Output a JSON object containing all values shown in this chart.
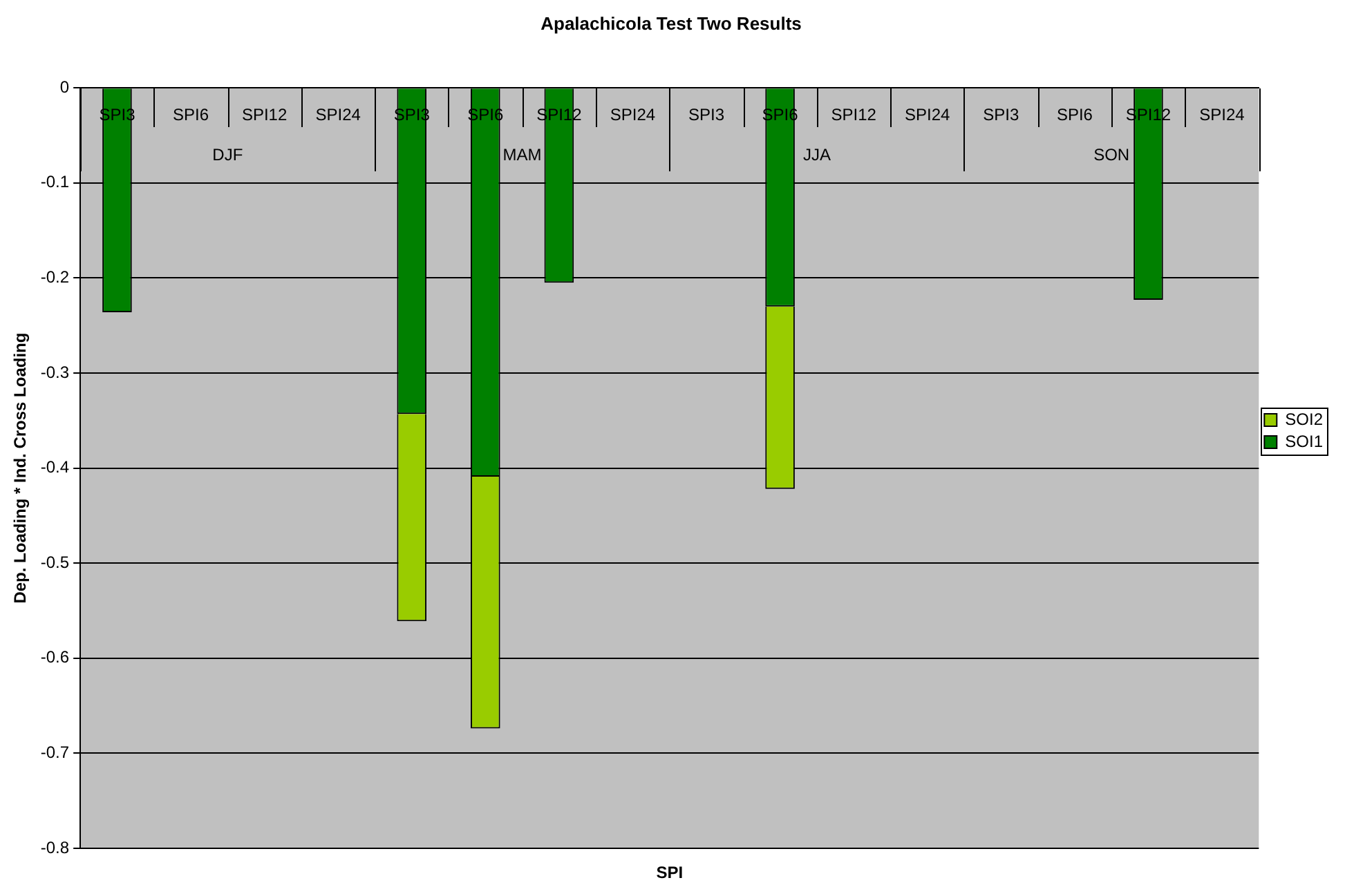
{
  "chart_data": {
    "type": "bar",
    "title": "Apalachicola Test Two Results",
    "xlabel": "SPI",
    "ylabel": "Dep. Loading * Ind. Cross Loading",
    "categories": [
      "SPI3",
      "SPI6",
      "SPI12",
      "SPI24",
      "SPI3",
      "SPI6",
      "SPI12",
      "SPI24",
      "SPI3",
      "SPI6",
      "SPI12",
      "SPI24",
      "SPI3",
      "SPI6",
      "SPI12",
      "SPI24"
    ],
    "series": [
      {
        "name": "SOI1",
        "color": "#008000",
        "values": [
          -0.236,
          null,
          null,
          null,
          -0.343,
          -0.409,
          -0.205,
          null,
          null,
          -0.23,
          null,
          null,
          null,
          null,
          -0.223,
          null
        ]
      },
      {
        "name": "SOI2",
        "color": "#99cc00",
        "values": [
          null,
          null,
          null,
          null,
          -0.218,
          -0.265,
          null,
          null,
          null,
          -0.192,
          null,
          null,
          null,
          null,
          null,
          null
        ]
      }
    ],
    "stacked": true,
    "ylim": [
      -0.8,
      0
    ],
    "yticks": [
      -0.8,
      -0.7,
      -0.6,
      -0.5,
      -0.4,
      -0.3,
      -0.2,
      -0.1,
      0
    ],
    "grid": "y",
    "legend": "right",
    "annotations": [
      "DJF",
      "MAM",
      "JJA",
      "SON"
    ]
  }
}
